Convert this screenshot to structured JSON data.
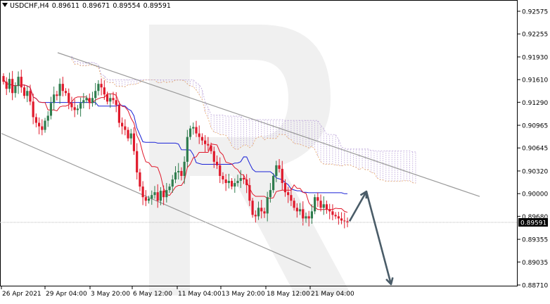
{
  "header": {
    "symbol": "USDCHF,H4",
    "open": "0.89611",
    "high": "0.89671",
    "low": "0.89554",
    "close": "0.89591"
  },
  "chart_data": {
    "type": "candlestick",
    "title": "USDCHF,H4",
    "ohlc": {
      "open": 0.89611,
      "high": 0.89671,
      "low": 0.89554,
      "close": 0.89591
    },
    "y_ticks": [
      "0.92575",
      "0.92255",
      "0.91930",
      "0.91610",
      "0.91290",
      "0.90965",
      "0.90645",
      "0.90320",
      "0.90000",
      "0.89680",
      "0.89355",
      "0.89035",
      "0.88710"
    ],
    "y_range": [
      0.8871,
      0.92575
    ],
    "current_price": "0.89591",
    "x_ticks": [
      "26 Apr 2021",
      "29 Apr 04:00",
      "3 May 20:00",
      "6 May 12:00",
      "11 May 04:00",
      "13 May 20:00",
      "18 May 12:00",
      "21 May 04:00"
    ],
    "series": [
      {
        "name": "",
        "kind": "candles",
        "up_color": "#2f7d4e",
        "down_color": "#e0192b",
        "closes": [
          0.9158,
          0.9148,
          0.9162,
          0.9142,
          0.9152,
          0.9165,
          0.915,
          0.9138,
          0.9145,
          0.913,
          0.9108,
          0.91,
          0.9095,
          0.909,
          0.9103,
          0.911,
          0.9128,
          0.914,
          0.9138,
          0.9155,
          0.9145,
          0.9142,
          0.9128,
          0.9122,
          0.9118,
          0.912,
          0.9128,
          0.9132,
          0.9135,
          0.9128,
          0.9135,
          0.9145,
          0.9155,
          0.915,
          0.914,
          0.913,
          0.9135,
          0.9132,
          0.9125,
          0.91,
          0.9095,
          0.909,
          0.9078,
          0.9085,
          0.906,
          0.903,
          0.901,
          0.8995,
          0.899,
          0.8993,
          0.8998,
          0.9002,
          0.899,
          0.9004,
          0.8995,
          0.9005,
          0.901,
          0.902,
          0.903,
          0.9032,
          0.9025,
          0.9045,
          0.908,
          0.9092,
          0.9094,
          0.9085,
          0.908,
          0.9075,
          0.907,
          0.9068,
          0.906,
          0.9045,
          0.904,
          0.9025,
          0.902,
          0.9015,
          0.9018,
          0.901,
          0.9015,
          0.9018,
          0.9022,
          0.902,
          0.9012,
          0.899,
          0.897,
          0.8968,
          0.898,
          0.8975,
          0.8972,
          0.8995,
          0.9005,
          0.9025,
          0.904,
          0.9035,
          0.9015,
          0.9002,
          0.8998,
          0.899,
          0.898,
          0.8975,
          0.8978,
          0.8965,
          0.8968,
          0.8965,
          0.8975,
          0.8995,
          0.899,
          0.898,
          0.8985,
          0.8978,
          0.8975,
          0.897,
          0.8968,
          0.8965,
          0.8962,
          0.8961,
          0.8959
        ]
      },
      {
        "name": "",
        "kind": "tenkan",
        "color": "#e0192b"
      },
      {
        "name": "",
        "kind": "kijun",
        "color": "#1a22d6"
      },
      {
        "name": "",
        "kind": "kumo",
        "colors": [
          "#e8a96b",
          "#b9a0d8"
        ]
      }
    ],
    "channel": {
      "upper": [
        [
          0.9199,
          0.8996
        ]
      ],
      "lower": [
        [
          0.9085,
          0.8895
        ]
      ]
    },
    "forecast_points": [
      0.8961,
      0.9003,
      0.8872
    ]
  }
}
